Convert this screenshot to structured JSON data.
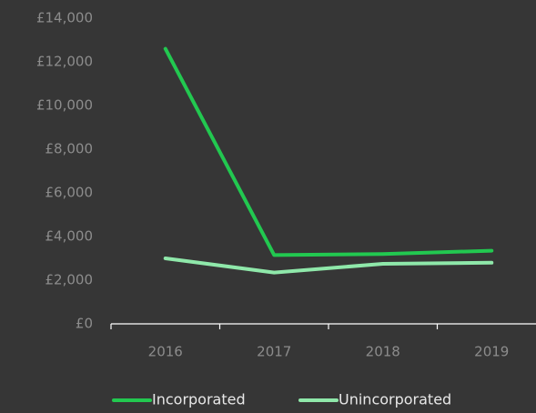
{
  "chart_data": {
    "type": "line",
    "categories": [
      "2016",
      "2017",
      "2018",
      "2019"
    ],
    "series": [
      {
        "name": "Incorporated",
        "color": "#22c850",
        "values": [
          12600,
          3150,
          3200,
          3350
        ]
      },
      {
        "name": "Unincorporated",
        "color": "#8fe8aa",
        "values": [
          3000,
          2350,
          2750,
          2800
        ]
      }
    ],
    "ylim": [
      0,
      14000
    ],
    "yticks": [
      {
        "value": 0,
        "label": "£0"
      },
      {
        "value": 2000,
        "label": "£2,000"
      },
      {
        "value": 4000,
        "label": "£4,000"
      },
      {
        "value": 6000,
        "label": "£6,000"
      },
      {
        "value": 8000,
        "label": "£8,000"
      },
      {
        "value": 10000,
        "label": "£10,000"
      },
      {
        "value": 12000,
        "label": "£12,000"
      },
      {
        "value": 14000,
        "label": "£14,000"
      }
    ],
    "grid": false,
    "legend": "bottom"
  }
}
